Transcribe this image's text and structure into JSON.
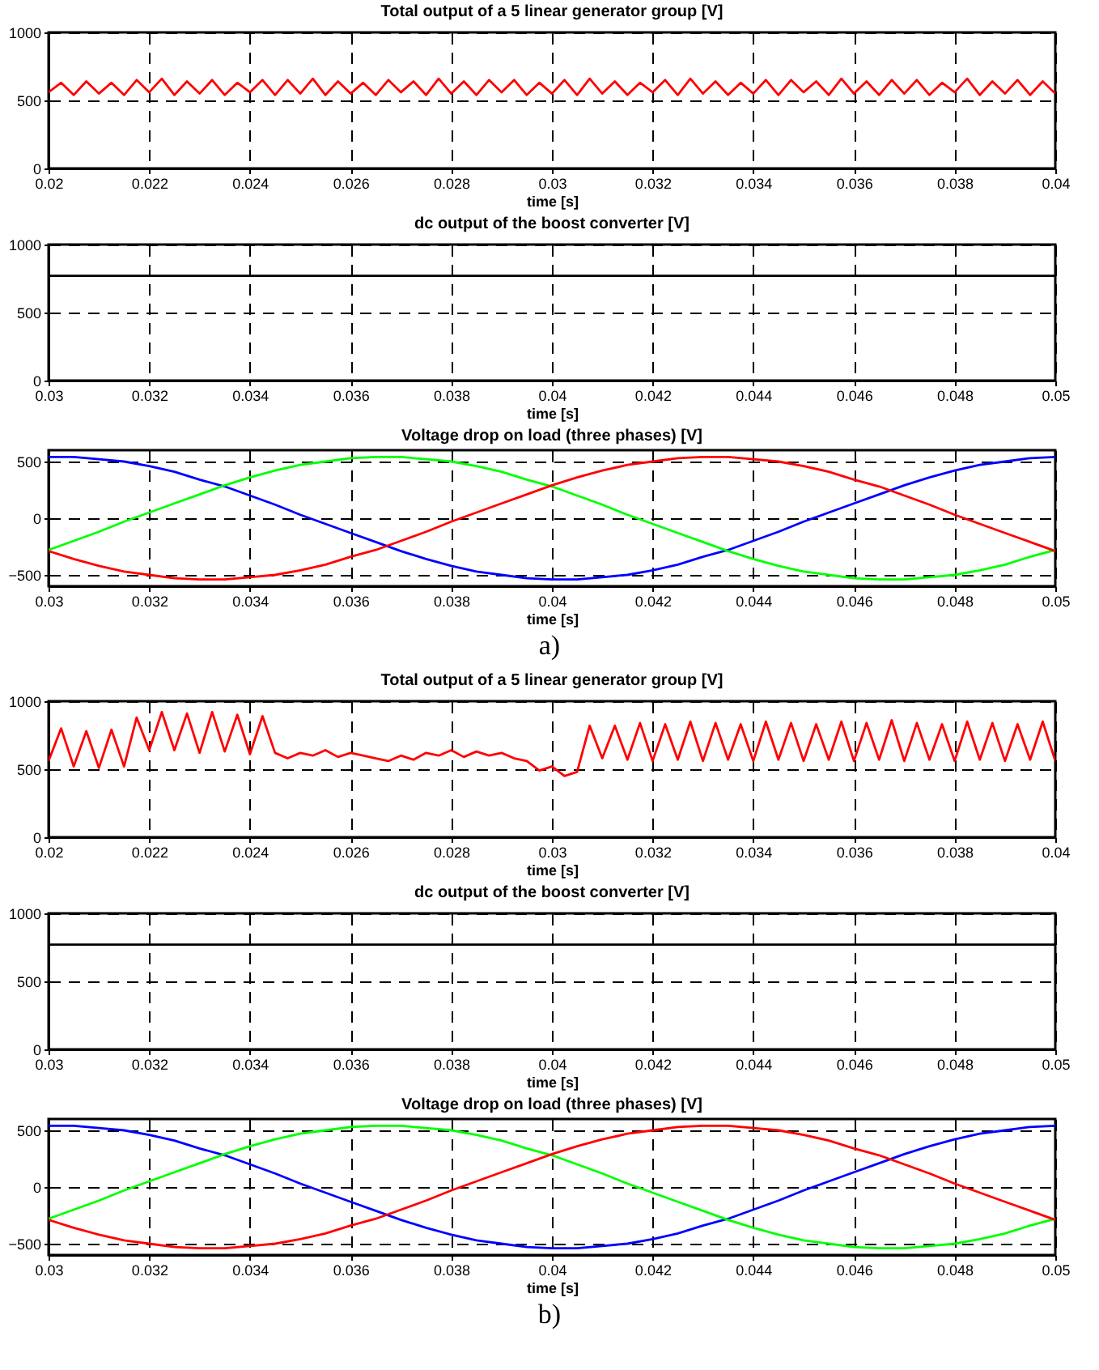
{
  "chart_data": [
    {
      "type": "line",
      "title": "Total output of a 5 linear generator group [V]",
      "xlabel": "time [s]",
      "xlim": [
        0.02,
        0.04
      ],
      "xticks": [
        0.02,
        0.022,
        0.024,
        0.026,
        0.028,
        0.03,
        0.032,
        0.034,
        0.036,
        0.038,
        0.04
      ],
      "ylim": [
        0,
        1000
      ],
      "yticks": [
        0,
        500,
        1000
      ],
      "grid": true,
      "x": [
        0.02,
        0.02025,
        0.0205,
        0.02075,
        0.021,
        0.02125,
        0.0215,
        0.02175,
        0.022,
        0.02225,
        0.0225,
        0.02275,
        0.023,
        0.02325,
        0.0235,
        0.02375,
        0.024,
        0.02425,
        0.0245,
        0.02475,
        0.025,
        0.02525,
        0.0255,
        0.02575,
        0.026,
        0.02625,
        0.0265,
        0.02675,
        0.027,
        0.02725,
        0.0275,
        0.02775,
        0.028,
        0.02825,
        0.0285,
        0.02875,
        0.029,
        0.02925,
        0.0295,
        0.02975,
        0.03,
        0.03025,
        0.0305,
        0.03075,
        0.031,
        0.03125,
        0.0315,
        0.03175,
        0.032,
        0.03225,
        0.0325,
        0.03275,
        0.033,
        0.03325,
        0.0335,
        0.03375,
        0.034,
        0.03425,
        0.0345,
        0.03475,
        0.035,
        0.03525,
        0.0355,
        0.03575,
        0.036,
        0.03625,
        0.0365,
        0.03675,
        0.037,
        0.03725,
        0.0375,
        0.03775,
        0.038,
        0.03825,
        0.0385,
        0.03875,
        0.039,
        0.03925,
        0.0395,
        0.03975,
        0.04
      ],
      "series": [
        {
          "color": "#ff0000",
          "values": [
            560,
            630,
            540,
            640,
            550,
            630,
            540,
            650,
            560,
            660,
            540,
            640,
            550,
            650,
            540,
            630,
            560,
            650,
            540,
            650,
            550,
            660,
            540,
            640,
            550,
            630,
            540,
            650,
            560,
            640,
            540,
            660,
            550,
            640,
            540,
            650,
            560,
            650,
            540,
            630,
            550,
            650,
            540,
            660,
            550,
            640,
            540,
            630,
            560,
            650,
            540,
            660,
            550,
            640,
            540,
            630,
            550,
            650,
            540,
            650,
            560,
            640,
            540,
            660,
            550,
            640,
            540,
            650,
            550,
            650,
            540,
            630,
            560,
            660,
            540,
            640,
            550,
            650,
            540,
            640,
            550
          ]
        }
      ]
    },
    {
      "type": "line",
      "title": "dc output of the boost converter [V]",
      "xlabel": "time [s]",
      "xlim": [
        0.03,
        0.05
      ],
      "xticks": [
        0.03,
        0.032,
        0.034,
        0.036,
        0.038,
        0.04,
        0.042,
        0.044,
        0.046,
        0.048,
        0.05
      ],
      "ylim": [
        0,
        1000
      ],
      "yticks": [
        0,
        500,
        1000
      ],
      "grid": true,
      "x": [
        0.03,
        0.05
      ],
      "series": [
        {
          "color": "#000000",
          "values": [
            770,
            770
          ]
        }
      ]
    },
    {
      "type": "line",
      "title": "Voltage drop on load (three phases) [V]",
      "xlabel": "time [s]",
      "xlim": [
        0.03,
        0.05
      ],
      "xticks": [
        0.03,
        0.032,
        0.034,
        0.036,
        0.038,
        0.04,
        0.042,
        0.044,
        0.046,
        0.048,
        0.05
      ],
      "ylim": [
        -600,
        600
      ],
      "yticks": [
        -500,
        0,
        500
      ],
      "grid": true,
      "annotations": [
        "a)"
      ],
      "x": [
        0.03,
        0.0305,
        0.031,
        0.0315,
        0.032,
        0.0325,
        0.033,
        0.0335,
        0.034,
        0.0345,
        0.035,
        0.0355,
        0.036,
        0.0365,
        0.037,
        0.0375,
        0.038,
        0.0385,
        0.039,
        0.0395,
        0.04,
        0.0405,
        0.041,
        0.0415,
        0.042,
        0.0425,
        0.043,
        0.0435,
        0.044,
        0.0445,
        0.045,
        0.0455,
        0.046,
        0.0465,
        0.047,
        0.0475,
        0.048,
        0.0485,
        0.049,
        0.0495,
        0.05
      ],
      "series": [
        {
          "color": "#0000ff",
          "values": [
            540,
            540,
            520,
            500,
            460,
            410,
            340,
            280,
            200,
            120,
            30,
            -50,
            -130,
            -210,
            -290,
            -360,
            -420,
            -470,
            -500,
            -530,
            -540,
            -540,
            -520,
            -500,
            -460,
            -410,
            -340,
            -280,
            -200,
            -120,
            -30,
            50,
            130,
            210,
            290,
            360,
            420,
            470,
            500,
            530,
            540
          ]
        },
        {
          "color": "#00ff00",
          "values": [
            -280,
            -200,
            -120,
            -30,
            50,
            130,
            210,
            290,
            360,
            420,
            470,
            500,
            530,
            540,
            540,
            520,
            500,
            460,
            410,
            340,
            280,
            200,
            120,
            30,
            -50,
            -130,
            -210,
            -290,
            -360,
            -420,
            -470,
            -500,
            -530,
            -540,
            -540,
            -520,
            -500,
            -460,
            -410,
            -340,
            -280
          ]
        },
        {
          "color": "#ff0000",
          "values": [
            -290,
            -360,
            -420,
            -470,
            -500,
            -530,
            -540,
            -540,
            -520,
            -500,
            -460,
            -410,
            -340,
            -280,
            -200,
            -120,
            -30,
            50,
            130,
            210,
            290,
            360,
            420,
            470,
            500,
            530,
            540,
            540,
            520,
            500,
            460,
            410,
            340,
            280,
            200,
            120,
            30,
            -50,
            -130,
            -210,
            -290
          ]
        }
      ]
    },
    {
      "type": "line",
      "title": "Total output of a 5 linear generator group [V]",
      "xlabel": "time [s]",
      "xlim": [
        0.02,
        0.04
      ],
      "xticks": [
        0.02,
        0.022,
        0.024,
        0.026,
        0.028,
        0.03,
        0.032,
        0.034,
        0.036,
        0.038,
        0.04
      ],
      "ylim": [
        0,
        1000
      ],
      "yticks": [
        0,
        500,
        1000
      ],
      "grid": true,
      "x": [
        0.02,
        0.02025,
        0.0205,
        0.02075,
        0.021,
        0.02125,
        0.0215,
        0.02175,
        0.022,
        0.02225,
        0.0225,
        0.02275,
        0.023,
        0.02325,
        0.0235,
        0.02375,
        0.024,
        0.02425,
        0.0245,
        0.02475,
        0.025,
        0.02525,
        0.0255,
        0.02575,
        0.026,
        0.02625,
        0.0265,
        0.02675,
        0.027,
        0.02725,
        0.0275,
        0.02775,
        0.028,
        0.02825,
        0.0285,
        0.02875,
        0.029,
        0.02925,
        0.0295,
        0.02975,
        0.03,
        0.03025,
        0.0305,
        0.03075,
        0.031,
        0.03125,
        0.0315,
        0.03175,
        0.032,
        0.03225,
        0.0325,
        0.03275,
        0.033,
        0.03325,
        0.0335,
        0.03375,
        0.034,
        0.03425,
        0.0345,
        0.03475,
        0.035,
        0.03525,
        0.0355,
        0.03575,
        0.036,
        0.03625,
        0.0365,
        0.03675,
        0.037,
        0.03725,
        0.0375,
        0.03775,
        0.038,
        0.03825,
        0.0385,
        0.03875,
        0.039,
        0.03925,
        0.0395,
        0.03975,
        0.04
      ],
      "series": [
        {
          "color": "#ff0000",
          "values": [
            560,
            800,
            520,
            780,
            510,
            790,
            520,
            880,
            640,
            920,
            640,
            910,
            620,
            920,
            630,
            900,
            610,
            890,
            620,
            580,
            620,
            600,
            640,
            590,
            620,
            600,
            580,
            560,
            600,
            570,
            620,
            600,
            640,
            590,
            630,
            600,
            620,
            580,
            560,
            490,
            520,
            450,
            480,
            820,
            580,
            820,
            570,
            840,
            560,
            830,
            570,
            850,
            560,
            840,
            570,
            830,
            560,
            850,
            570,
            840,
            560,
            830,
            570,
            850,
            560,
            840,
            570,
            860,
            560,
            840,
            570,
            830,
            560,
            850,
            570,
            840,
            560,
            830,
            570,
            850,
            560
          ]
        }
      ]
    },
    {
      "type": "line",
      "title": "dc output of the boost converter [V]",
      "xlabel": "time [s]",
      "xlim": [
        0.03,
        0.05
      ],
      "xticks": [
        0.03,
        0.032,
        0.034,
        0.036,
        0.038,
        0.04,
        0.042,
        0.044,
        0.046,
        0.048,
        0.05
      ],
      "ylim": [
        0,
        1000
      ],
      "yticks": [
        0,
        500,
        1000
      ],
      "grid": true,
      "x": [
        0.03,
        0.05
      ],
      "series": [
        {
          "color": "#000000",
          "values": [
            770,
            770
          ]
        }
      ]
    },
    {
      "type": "line",
      "title": "Voltage drop on load (three phases) [V]",
      "xlabel": "time [s]",
      "xlim": [
        0.03,
        0.05
      ],
      "xticks": [
        0.03,
        0.032,
        0.034,
        0.036,
        0.038,
        0.04,
        0.042,
        0.044,
        0.046,
        0.048,
        0.05
      ],
      "ylim": [
        -600,
        600
      ],
      "yticks": [
        -500,
        0,
        500
      ],
      "grid": true,
      "annotations": [
        "b)"
      ],
      "x": [
        0.03,
        0.0305,
        0.031,
        0.0315,
        0.032,
        0.0325,
        0.033,
        0.0335,
        0.034,
        0.0345,
        0.035,
        0.0355,
        0.036,
        0.0365,
        0.037,
        0.0375,
        0.038,
        0.0385,
        0.039,
        0.0395,
        0.04,
        0.0405,
        0.041,
        0.0415,
        0.042,
        0.0425,
        0.043,
        0.0435,
        0.044,
        0.0445,
        0.045,
        0.0455,
        0.046,
        0.0465,
        0.047,
        0.0475,
        0.048,
        0.0485,
        0.049,
        0.0495,
        0.05
      ],
      "series": [
        {
          "color": "#0000ff",
          "values": [
            540,
            540,
            520,
            500,
            460,
            410,
            340,
            280,
            200,
            120,
            30,
            -50,
            -130,
            -210,
            -290,
            -360,
            -420,
            -470,
            -500,
            -530,
            -540,
            -540,
            -520,
            -500,
            -460,
            -410,
            -340,
            -280,
            -200,
            -120,
            -30,
            50,
            130,
            210,
            290,
            360,
            420,
            470,
            500,
            530,
            540
          ]
        },
        {
          "color": "#00ff00",
          "values": [
            -280,
            -200,
            -120,
            -30,
            50,
            130,
            210,
            290,
            360,
            420,
            470,
            500,
            530,
            540,
            540,
            520,
            500,
            460,
            410,
            340,
            280,
            200,
            120,
            30,
            -50,
            -130,
            -210,
            -290,
            -360,
            -420,
            -470,
            -500,
            -530,
            -540,
            -540,
            -520,
            -500,
            -460,
            -410,
            -340,
            -280
          ]
        },
        {
          "color": "#ff0000",
          "values": [
            -290,
            -360,
            -420,
            -470,
            -500,
            -530,
            -540,
            -540,
            -520,
            -500,
            -460,
            -410,
            -340,
            -280,
            -200,
            -120,
            -30,
            50,
            130,
            210,
            290,
            360,
            420,
            470,
            500,
            530,
            540,
            540,
            520,
            500,
            460,
            410,
            340,
            280,
            200,
            120,
            30,
            -50,
            -130,
            -210,
            -290
          ]
        }
      ]
    }
  ]
}
